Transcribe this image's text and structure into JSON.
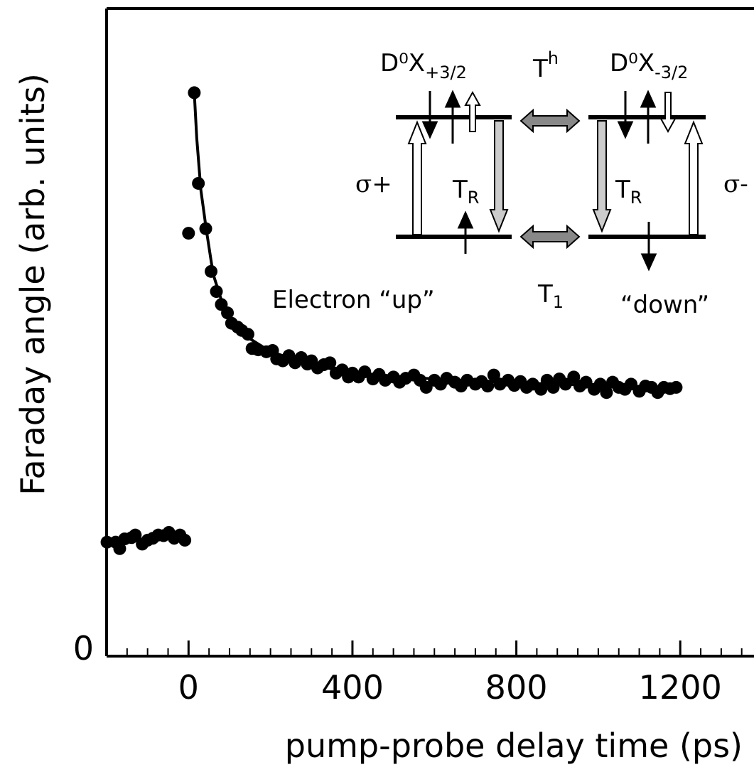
{
  "chart_data": {
    "type": "scatter",
    "x_label": "pump-probe delay time (ps)",
    "y_label": "Faraday angle (arb. units)",
    "xlim": [
      -200,
      1380
    ],
    "ylim": [
      0,
      100
    ],
    "xticks": [
      0,
      400,
      800,
      1200
    ],
    "xminorticks": [
      -150,
      -100,
      -50,
      50,
      100,
      150,
      200,
      250,
      300,
      350,
      450,
      500,
      550,
      600,
      650,
      700,
      750,
      850,
      900,
      950,
      1000,
      1050,
      1100,
      1150,
      1250,
      1300,
      1350
    ],
    "yticks": [
      0
    ],
    "series": [
      {
        "type": "scatter",
        "color": "#000000",
        "x": [
          -199,
          -178,
          -168,
          -156,
          -139,
          -130,
          -113,
          -100,
          -87,
          -74,
          -61,
          -48,
          -35,
          -21,
          -9,
          0,
          14,
          24,
          42,
          55,
          68,
          80,
          95,
          105,
          120,
          130,
          145,
          155,
          170,
          190,
          205,
          215,
          230,
          245,
          260,
          275,
          290,
          300,
          315,
          330,
          345,
          360,
          375,
          390,
          400,
          415,
          430,
          450,
          465,
          480,
          500,
          515,
          530,
          550,
          565,
          580,
          600,
          615,
          630,
          650,
          665,
          680,
          700,
          715,
          730,
          745,
          760,
          780,
          795,
          810,
          825,
          840,
          860,
          875,
          890,
          905,
          920,
          940,
          955,
          970,
          990,
          1005,
          1020,
          1035,
          1050,
          1065,
          1080,
          1100,
          1115,
          1130,
          1145,
          1160,
          1175,
          1190
        ],
        "values": [
          17.6,
          17.6,
          16.6,
          18.1,
          18.3,
          18.7,
          17.3,
          17.9,
          18.2,
          18.7,
          18.6,
          19.1,
          18.2,
          18.7,
          17.9,
          65.3,
          87.0,
          73.0,
          66.0,
          59.4,
          56.3,
          54.3,
          53.0,
          51.4,
          50.8,
          50.3,
          49.7,
          47.5,
          47.3,
          47.0,
          47.2,
          45.9,
          45.6,
          46.4,
          45.3,
          46.1,
          45.1,
          45.6,
          44.5,
          45.0,
          45.3,
          43.7,
          44.2,
          43.1,
          43.7,
          43.1,
          43.9,
          42.8,
          43.5,
          42.6,
          43.1,
          42.3,
          42.9,
          43.4,
          42.6,
          41.5,
          42.6,
          42.0,
          42.9,
          42.3,
          41.7,
          42.6,
          42.0,
          42.4,
          41.7,
          43.4,
          42.0,
          42.6,
          41.8,
          42.4,
          41.5,
          42.0,
          41.2,
          42.6,
          41.5,
          42.8,
          42.0,
          43.1,
          41.7,
          42.3,
          41.2,
          42.0,
          40.7,
          42.3,
          41.5,
          41.2,
          42.0,
          40.9,
          41.7,
          41.5,
          40.7,
          41.5,
          41.3,
          41.5
        ]
      },
      {
        "type": "line",
        "color": "#000000",
        "x": [
          14,
          20,
          30,
          43,
          60,
          80,
          100,
          150,
          200,
          300,
          400,
          600,
          800,
          1000,
          1190
        ],
        "values": [
          87,
          80,
          72,
          66,
          59,
          55,
          52,
          49,
          47,
          45,
          43.7,
          42.8,
          42.2,
          41.8,
          41.5
        ]
      }
    ],
    "inset": {
      "state_left": {
        "main": "D⁰X",
        "sub": "+3/2"
      },
      "state_right": {
        "main": "D⁰X",
        "sub": "-3/2"
      },
      "hole_transfer": {
        "main": "T",
        "sup": "h"
      },
      "recomb_left": {
        "main": "T",
        "sub": "R"
      },
      "recomb_right": {
        "main": "T",
        "sub": "R"
      },
      "electron_transfer": {
        "main": "T",
        "sub": "1"
      },
      "pol_left": "σ+",
      "pol_right": "σ-",
      "electron_up": "Electron “up”",
      "electron_down": "“down”"
    }
  }
}
